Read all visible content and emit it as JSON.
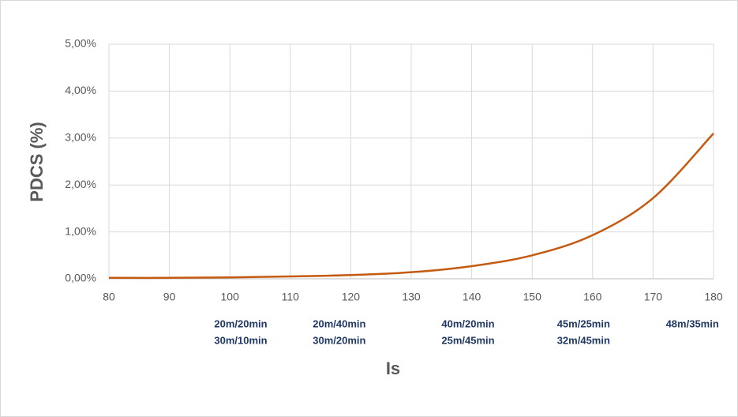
{
  "chart_data": {
    "type": "line",
    "x_label": "Is",
    "y_label": "PDCS (%)",
    "x": [
      80,
      90,
      100,
      110,
      120,
      130,
      140,
      150,
      160,
      170,
      180
    ],
    "series": [
      {
        "color": "#c55a11",
        "values": [
          0.02,
          0.02,
          0.03,
          0.05,
          0.08,
          0.14,
          0.27,
          0.5,
          0.93,
          1.72,
          3.1
        ]
      }
    ],
    "xlim": [
      80,
      180
    ],
    "xticks": [
      80,
      90,
      100,
      110,
      120,
      130,
      140,
      150,
      160,
      170,
      180
    ],
    "ylim": [
      0,
      5
    ],
    "yticks": [
      {
        "value": 0,
        "label": "0,00%"
      },
      {
        "value": 1,
        "label": "1,00%"
      },
      {
        "value": 2,
        "label": "2,00%"
      },
      {
        "value": 3,
        "label": "3,00%"
      },
      {
        "value": 4,
        "label": "4,00%"
      },
      {
        "value": 5,
        "label": "5,00%"
      }
    ],
    "grid": true,
    "annotations": [
      {
        "x": 101.8,
        "lines": [
          "20m/20min",
          "30m/10min"
        ]
      },
      {
        "x": 118.1,
        "lines": [
          "20m/40min",
          "30m/20min"
        ]
      },
      {
        "x": 139.4,
        "lines": [
          "40m/20min",
          "25m/45min"
        ]
      },
      {
        "x": 158.5,
        "lines": [
          "45m/25min",
          "32m/45min"
        ]
      },
      {
        "x": 176.5,
        "lines": [
          "48m/35min"
        ]
      }
    ]
  }
}
